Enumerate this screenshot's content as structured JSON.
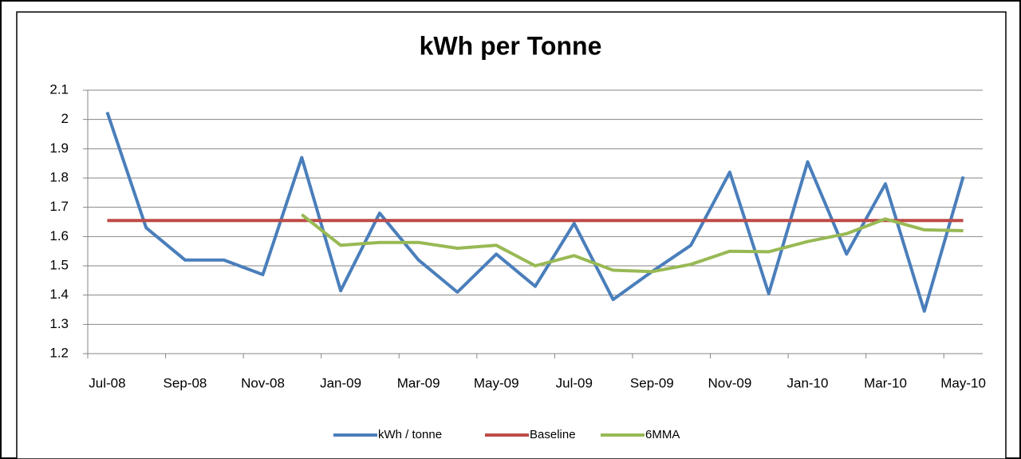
{
  "chart_data": {
    "type": "line",
    "title": "kWh per Tonne",
    "categories": [
      "Jul-08",
      null,
      "Sep-08",
      null,
      "Nov-08",
      null,
      "Jan-09",
      null,
      "Mar-09",
      null,
      "May-09",
      null,
      "Jul-09",
      null,
      "Sep-09",
      null,
      "Nov-09",
      null,
      "Jan-10",
      null,
      "Mar-10",
      null,
      "May-10"
    ],
    "series": [
      {
        "name": "kWh / tonne",
        "color": "#4a7ebb",
        "values": [
          2.025,
          1.63,
          1.52,
          1.52,
          1.47,
          1.87,
          1.415,
          1.68,
          1.52,
          1.41,
          1.54,
          1.43,
          1.645,
          1.385,
          1.48,
          1.57,
          1.82,
          1.405,
          1.855,
          1.54,
          1.78,
          1.345,
          1.805
        ]
      },
      {
        "name": "Baseline",
        "color": "#be4b48",
        "values": [
          1.655,
          1.655,
          1.655,
          1.655,
          1.655,
          1.655,
          1.655,
          1.655,
          1.655,
          1.655,
          1.655,
          1.655,
          1.655,
          1.655,
          1.655,
          1.655,
          1.655,
          1.655,
          1.655,
          1.655,
          1.655,
          1.655,
          1.655
        ]
      },
      {
        "name": "6MMA",
        "color": "#98b954",
        "values": [
          null,
          null,
          null,
          null,
          null,
          1.675,
          1.57,
          1.58,
          1.58,
          1.56,
          1.57,
          1.5,
          1.535,
          1.485,
          1.48,
          1.505,
          1.55,
          1.548,
          1.583,
          1.61,
          1.66,
          1.623,
          1.62
        ]
      }
    ],
    "ylim": [
      1.2,
      2.1
    ],
    "yticks": [
      1.2,
      1.3,
      1.4,
      1.5,
      1.6,
      1.7,
      1.8,
      1.9,
      2,
      2.1
    ],
    "grid": true,
    "legend": "bottom"
  }
}
